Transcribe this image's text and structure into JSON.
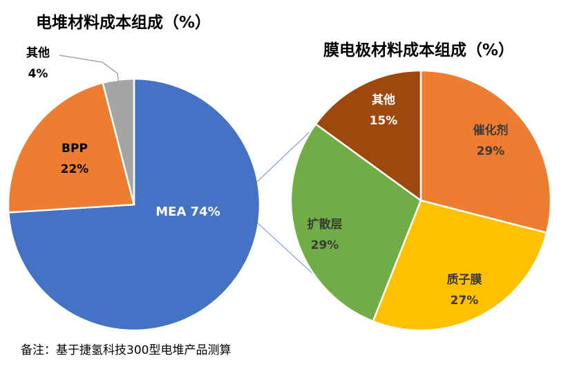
{
  "chart_data": [
    {
      "type": "pie",
      "title": "电堆材料成本组成（%）",
      "slices": [
        {
          "label": "MEA",
          "value": 74,
          "value_text": "74%",
          "color": "#4472C4"
        },
        {
          "label": "BPP",
          "value": 22,
          "value_text": "22%",
          "color": "#ED7D31"
        },
        {
          "label": "其他",
          "value": 4,
          "value_text": "4%",
          "color": "#A5A5A5"
        }
      ]
    },
    {
      "type": "pie",
      "title": "膜电极材料成本组成（%）",
      "slices": [
        {
          "label": "催化剂",
          "value": 29,
          "value_text": "29%",
          "color": "#ED7D31"
        },
        {
          "label": "质子膜",
          "value": 27,
          "value_text": "27%",
          "color": "#FFC000"
        },
        {
          "label": "扩散层",
          "value": 29,
          "value_text": "29%",
          "color": "#70AD47"
        },
        {
          "label": "其他",
          "value": 15,
          "value_text": "15%",
          "color": "#9E480E"
        }
      ]
    }
  ],
  "note": "备注：基于捷氢科技300型电堆产品测算"
}
